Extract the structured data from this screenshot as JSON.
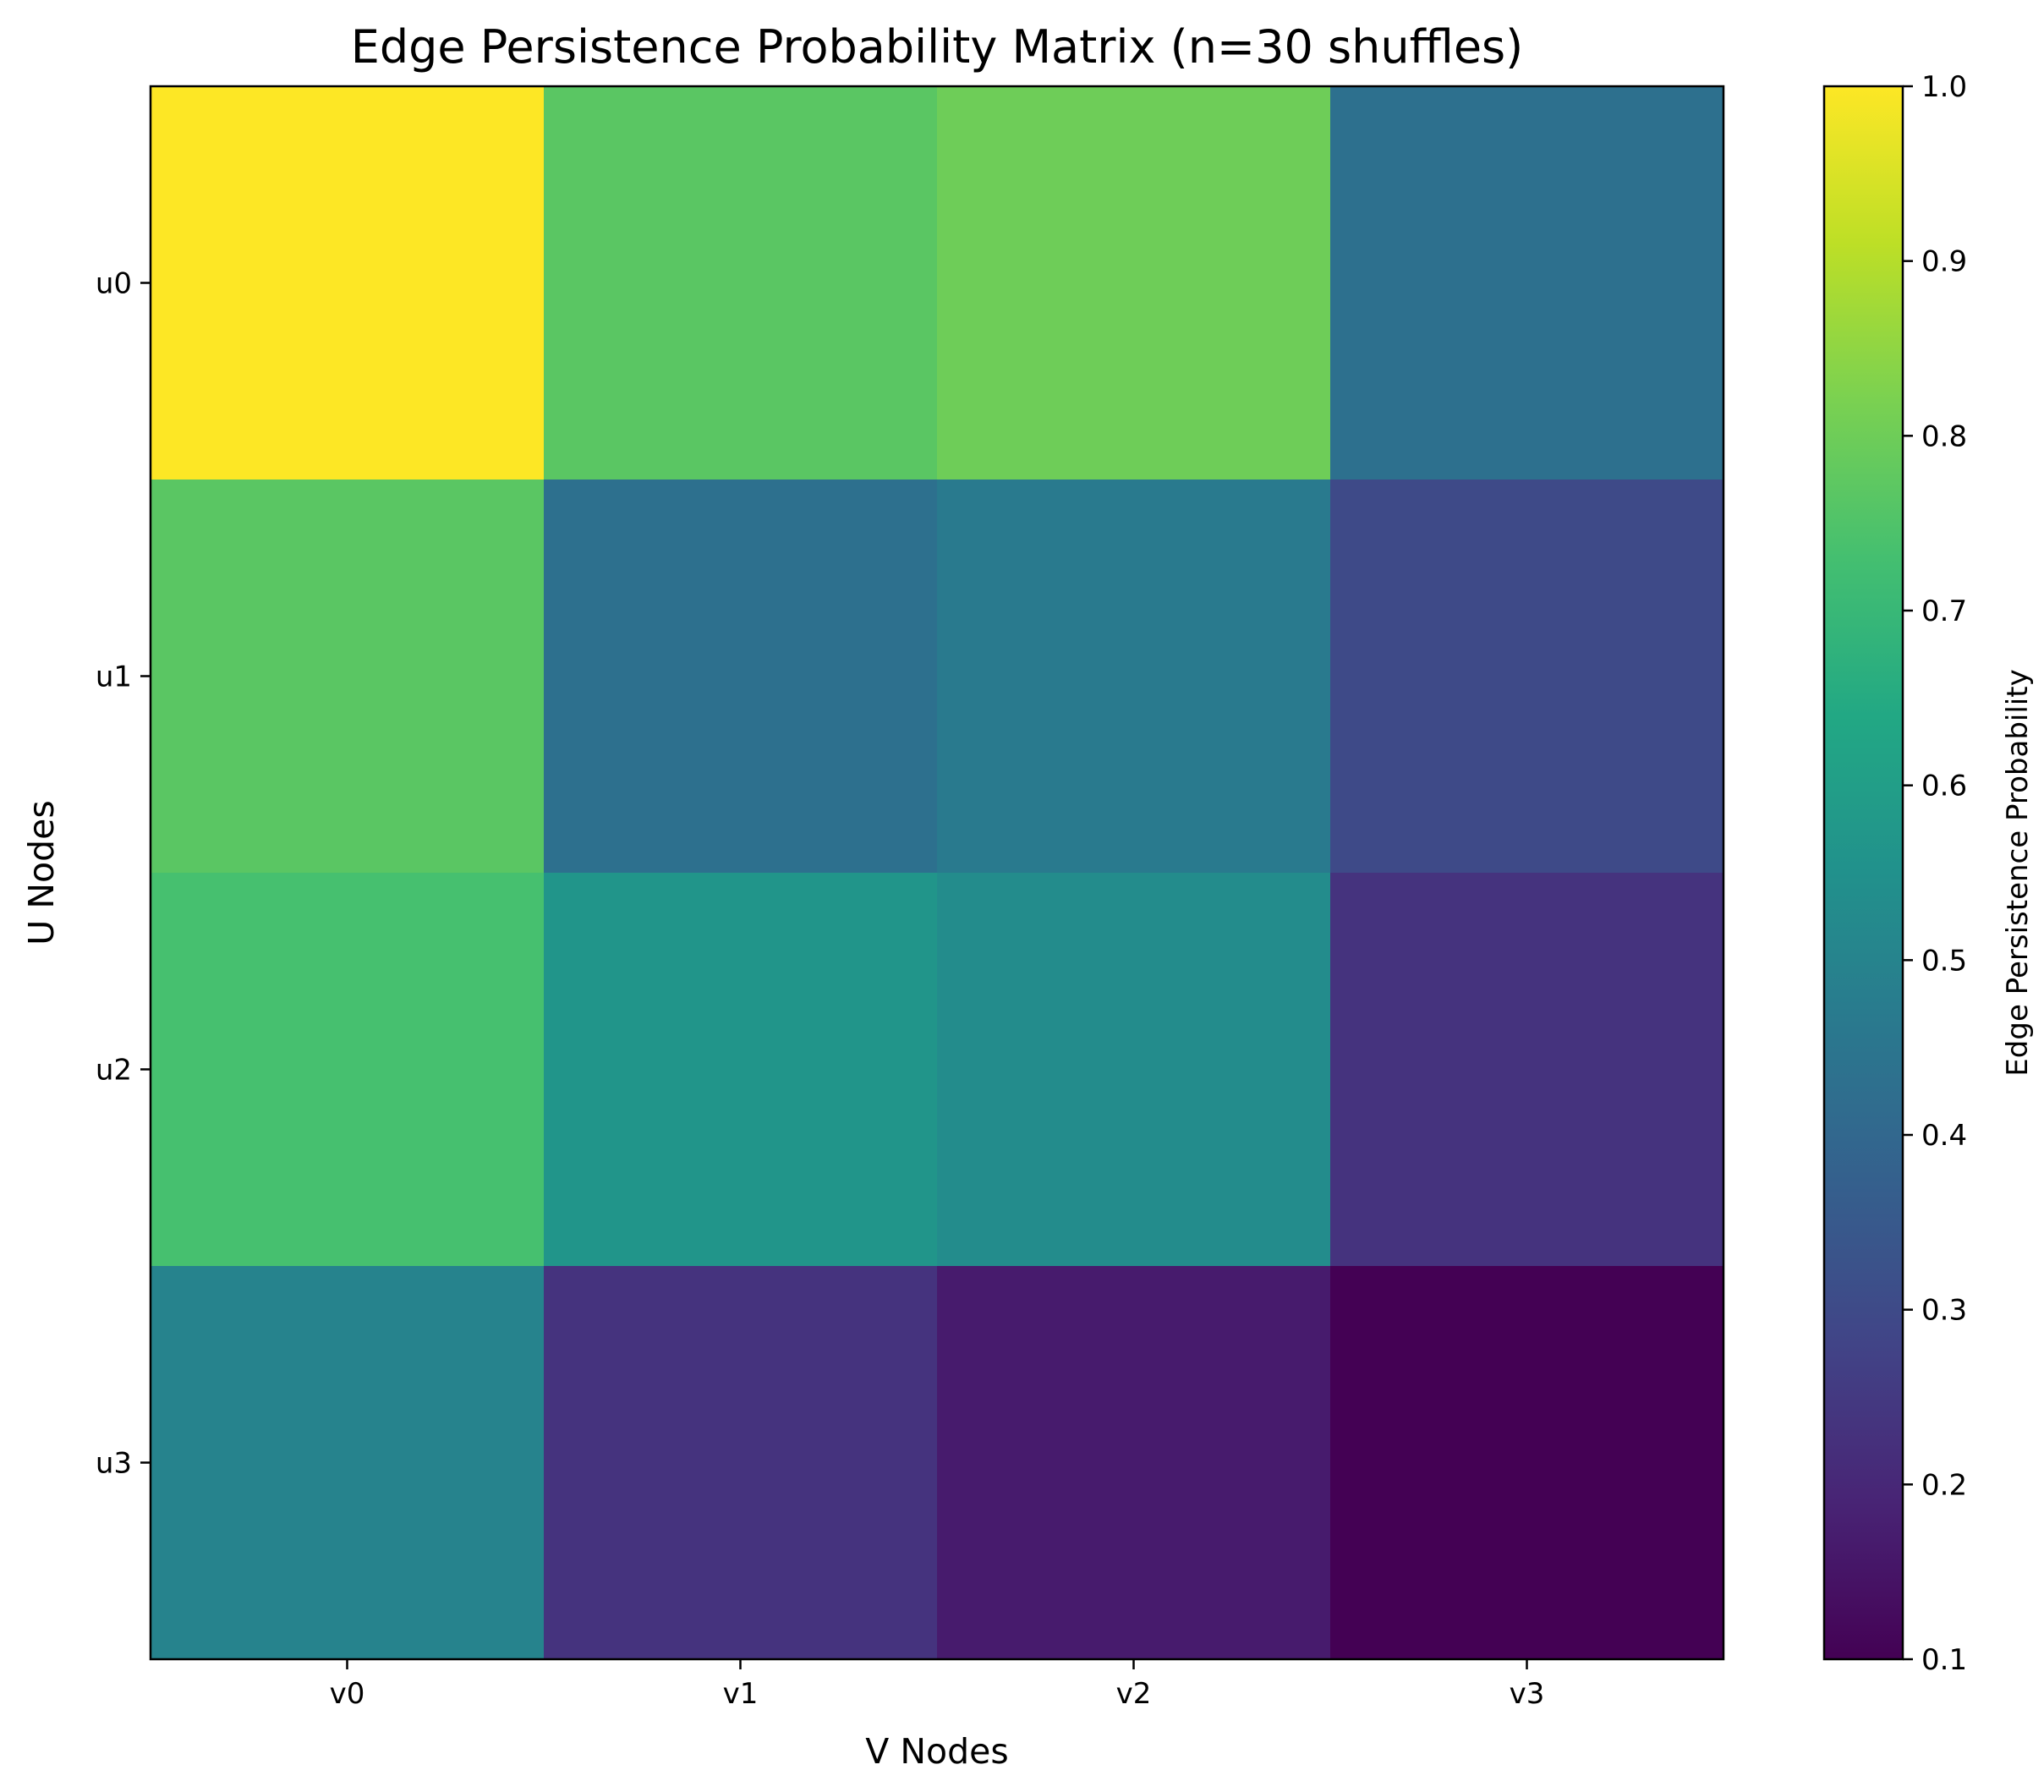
{
  "chart_data": {
    "type": "heatmap",
    "title": "Edge Persistence Probability Matrix (n=30 shuffles)",
    "xlabel": "V Nodes",
    "ylabel": "U Nodes",
    "x_categories": [
      "v0",
      "v1",
      "v2",
      "v3"
    ],
    "y_categories": [
      "u0",
      "u1",
      "u2",
      "u3"
    ],
    "values": [
      [
        1.0,
        0.767,
        0.8,
        0.433
      ],
      [
        0.767,
        0.433,
        0.467,
        0.3
      ],
      [
        0.733,
        0.567,
        0.533,
        0.233
      ],
      [
        0.5,
        0.233,
        0.167,
        0.1
      ]
    ],
    "colorbar": {
      "label": "Edge Persistence Probability",
      "range": [
        0.1,
        1.0
      ],
      "ticks": [
        "0.1",
        "0.2",
        "0.3",
        "0.4",
        "0.5",
        "0.6",
        "0.7",
        "0.8",
        "0.9",
        "1.0"
      ],
      "colormap": "viridis"
    },
    "grid": false
  }
}
